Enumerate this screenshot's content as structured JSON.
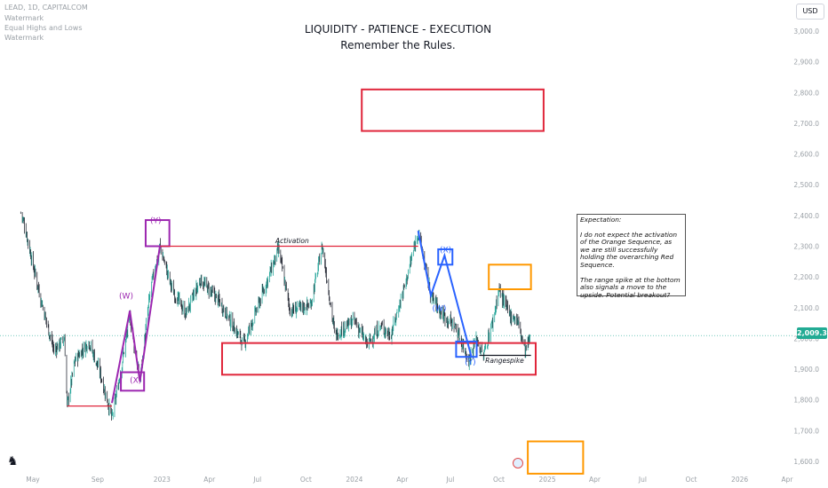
{
  "symbol_legend": {
    "symbol": "LEAD, 1D, CAPITALCOM",
    "indicators": [
      "Watermark",
      "Equal Highs and Lows",
      "Watermark"
    ]
  },
  "header": {
    "title": "LIQUIDITY - PATIENCE - EXECUTION",
    "subtitle": "Remember the Rules."
  },
  "currency_label": "USD",
  "last_price_label": "2,009.3",
  "note": {
    "heading": "Expectation:",
    "paragraph1": "I do not expect the activation of the Orange Sequence, as we are still successfully holding the overarching Red Sequence.",
    "paragraph2": "The range spike at the bottom also signals a move to the upside. Potential breakout?"
  },
  "colors": {
    "up_candle": "#26a69a",
    "down_candle": "#2a2e39",
    "red_zone": "#e0263b",
    "orange_zone": "#ff9800",
    "purple": "#9c27b0",
    "blue": "#2962ff",
    "price_line": "#22ab94"
  },
  "chart_data": {
    "type": "candlestick",
    "title": "LIQUIDITY - PATIENCE - EXECUTION",
    "subtitle": "Remember the Rules.",
    "y_axis": {
      "ticks": [
        1600,
        1700,
        1800,
        1900,
        2000,
        2100,
        2200,
        2300,
        2400,
        2500,
        2600,
        2700,
        2800,
        2900,
        3000
      ],
      "tick_labels": [
        "1,600.0",
        "1,700.0",
        "1,800.0",
        "1,900.0",
        "2,000.0",
        "2,100.0",
        "2,200.0",
        "2,300.0",
        "2,400.0",
        "2,500.0",
        "2,600.0",
        "2,700.0",
        "2,800.0",
        "2,900.0",
        "3,000.0"
      ],
      "range": [
        1560,
        3020
      ]
    },
    "x_axis": {
      "tick_labels": [
        "May",
        "Sep",
        "2023",
        "Apr",
        "Jul",
        "Oct",
        "2024",
        "Apr",
        "Jul",
        "Oct",
        "2025",
        "Apr",
        "Jul",
        "Oct",
        "2026",
        "Apr"
      ],
      "tick_dates": [
        "2022-05-01",
        "2022-09-01",
        "2023-01-01",
        "2023-04-01",
        "2023-07-01",
        "2023-10-01",
        "2024-01-01",
        "2024-04-01",
        "2024-07-01",
        "2024-10-01",
        "2025-01-01",
        "2025-04-01",
        "2025-07-01",
        "2025-10-01",
        "2026-01-01",
        "2026-04-01"
      ]
    },
    "price_anchors": [
      {
        "date": "2022-04-08",
        "price": 2410
      },
      {
        "date": "2022-04-15",
        "price": 2370
      },
      {
        "date": "2022-05-01",
        "price": 2240
      },
      {
        "date": "2022-05-20",
        "price": 2100
      },
      {
        "date": "2022-06-10",
        "price": 1960
      },
      {
        "date": "2022-06-30",
        "price": 2000
      },
      {
        "date": "2022-07-05",
        "price": 1780
      },
      {
        "date": "2022-07-20",
        "price": 1930
      },
      {
        "date": "2022-08-15",
        "price": 1990
      },
      {
        "date": "2022-09-05",
        "price": 1890
      },
      {
        "date": "2022-09-28",
        "price": 1740
      },
      {
        "date": "2022-10-12",
        "price": 1870
      },
      {
        "date": "2022-11-01",
        "price": 2070
      },
      {
        "date": "2022-11-20",
        "price": 1860
      },
      {
        "date": "2022-12-10",
        "price": 2160
      },
      {
        "date": "2022-12-28",
        "price": 2300
      },
      {
        "date": "2023-01-20",
        "price": 2160
      },
      {
        "date": "2023-02-15",
        "price": 2080
      },
      {
        "date": "2023-03-15",
        "price": 2190
      },
      {
        "date": "2023-04-20",
        "price": 2120
      },
      {
        "date": "2023-06-05",
        "price": 1980
      },
      {
        "date": "2023-07-01",
        "price": 2100
      },
      {
        "date": "2023-08-10",
        "price": 2290
      },
      {
        "date": "2023-09-01",
        "price": 2090
      },
      {
        "date": "2023-10-10",
        "price": 2110
      },
      {
        "date": "2023-11-01",
        "price": 2300
      },
      {
        "date": "2023-11-25",
        "price": 2010
      },
      {
        "date": "2024-01-01",
        "price": 2060
      },
      {
        "date": "2024-01-25",
        "price": 1980
      },
      {
        "date": "2024-02-20",
        "price": 2040
      },
      {
        "date": "2024-03-10",
        "price": 2010
      },
      {
        "date": "2024-04-10",
        "price": 2200
      },
      {
        "date": "2024-05-01",
        "price": 2350
      },
      {
        "date": "2024-05-25",
        "price": 2140
      },
      {
        "date": "2024-06-15",
        "price": 2080
      },
      {
        "date": "2024-07-10",
        "price": 2040
      },
      {
        "date": "2024-08-05",
        "price": 1930
      },
      {
        "date": "2024-08-20",
        "price": 2000
      },
      {
        "date": "2024-09-01",
        "price": 1940
      },
      {
        "date": "2024-09-20",
        "price": 2060
      },
      {
        "date": "2024-10-01",
        "price": 2160
      },
      {
        "date": "2024-10-20",
        "price": 2080
      },
      {
        "date": "2024-11-05",
        "price": 2060
      },
      {
        "date": "2024-11-20",
        "price": 1960
      },
      {
        "date": "2024-12-01",
        "price": 2009
      }
    ],
    "last_price": 2009.3,
    "zones": [
      {
        "name": "red-upper",
        "color": "red",
        "date_range": [
          "2024-01-15",
          "2024-12-25"
        ],
        "price_range": [
          2675,
          2810
        ]
      },
      {
        "name": "red-lower",
        "color": "red",
        "date_range": [
          "2023-04-25",
          "2024-12-10"
        ],
        "price_range": [
          1882,
          1985
        ]
      },
      {
        "name": "orange-upper",
        "color": "orange",
        "date_range": [
          "2024-09-12",
          "2024-12-01"
        ],
        "price_range": [
          2160,
          2240
        ]
      },
      {
        "name": "orange-lower",
        "color": "orange",
        "date_range": [
          "2024-11-25",
          "2025-03-10"
        ],
        "price_range": [
          1560,
          1665
        ]
      },
      {
        "name": "purple-y",
        "color": "purple",
        "date_range": [
          "2022-12-01",
          "2023-01-15"
        ],
        "price_range": [
          2300,
          2385
        ]
      },
      {
        "name": "purple-x",
        "color": "purple",
        "date_range": [
          "2022-10-15",
          "2022-11-28"
        ],
        "price_range": [
          1830,
          1890
        ]
      },
      {
        "name": "blue-x",
        "color": "blue",
        "date_range": [
          "2024-06-08",
          "2024-07-05"
        ],
        "price_range": [
          2240,
          2290
        ]
      },
      {
        "name": "blue-y",
        "color": "blue",
        "date_range": [
          "2024-07-12",
          "2024-08-20"
        ],
        "price_range": [
          1940,
          1990
        ]
      }
    ],
    "labels": [
      {
        "text": "(W)",
        "color": "purple",
        "date": "2022-10-25",
        "price": 2130
      },
      {
        "text": "(X)",
        "color": "purple",
        "date": "2022-11-12",
        "price": 1855
      },
      {
        "text": "(Y)",
        "color": "purple",
        "date": "2022-12-20",
        "price": 2375
      },
      {
        "text": "(W)",
        "color": "blue",
        "date": "2024-06-10",
        "price": 2090
      },
      {
        "text": "(X)",
        "color": "blue",
        "date": "2024-06-22",
        "price": 2280
      },
      {
        "text": "(Y)",
        "color": "blue",
        "date": "2024-08-08",
        "price": 1915
      },
      {
        "text": "Activation",
        "color": "dark",
        "date": "2023-09-05",
        "price": 2310
      },
      {
        "text": "Rangespike",
        "color": "dark",
        "date": "2024-10-12",
        "price": 1920
      }
    ],
    "lines": [
      {
        "name": "activation-line",
        "color": "red",
        "dates": [
          "2022-12-28",
          "2024-05-01"
        ],
        "prices": [
          2300,
          2300
        ]
      },
      {
        "name": "low-line",
        "color": "red",
        "dates": [
          "2022-07-05",
          "2022-09-28"
        ],
        "prices": [
          1780,
          1780
        ]
      },
      {
        "name": "rangespike-line",
        "color": "dark",
        "dates": [
          "2024-08-25",
          "2024-12-01"
        ],
        "prices": [
          1945,
          1945
        ]
      }
    ],
    "wave_paths": [
      {
        "name": "purple-wave",
        "color": "purple",
        "dates": [
          "2022-09-28",
          "2022-11-01",
          "2022-11-20",
          "2022-12-28"
        ],
        "prices": [
          1790,
          2090,
          1860,
          2300
        ]
      },
      {
        "name": "blue-wave",
        "color": "blue",
        "dates": [
          "2024-05-01",
          "2024-05-25",
          "2024-06-20",
          "2024-08-10"
        ],
        "prices": [
          2350,
          2140,
          2270,
          1940
        ]
      }
    ],
    "grid": false
  }
}
